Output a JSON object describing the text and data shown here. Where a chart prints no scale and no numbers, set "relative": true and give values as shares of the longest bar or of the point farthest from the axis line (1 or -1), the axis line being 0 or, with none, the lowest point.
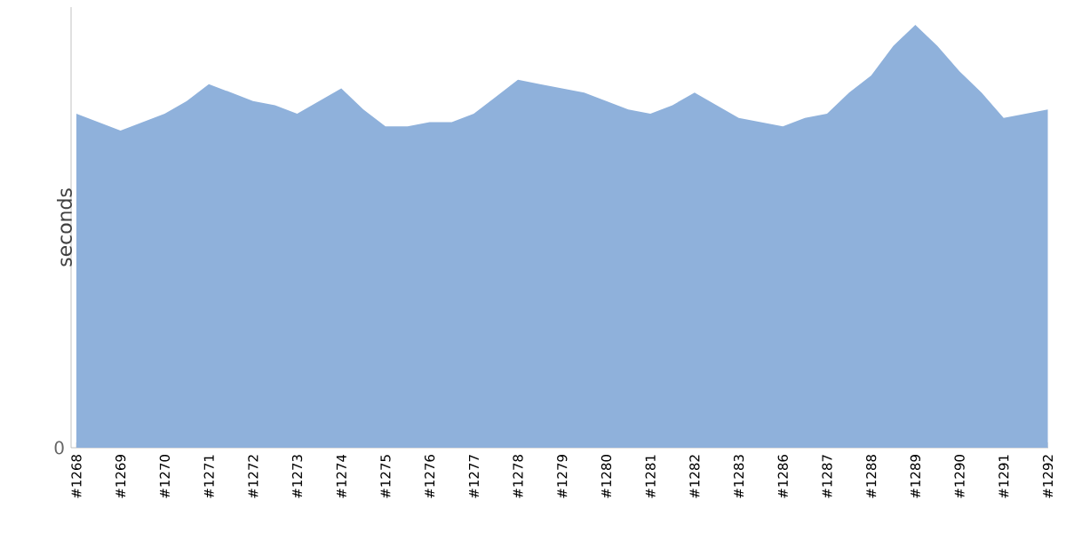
{
  "chart_data": {
    "type": "area",
    "ylabel": "seconds",
    "relative": true,
    "color": "#8fb1db",
    "annotations": [
      "0"
    ],
    "categories": [
      "#1268",
      null,
      "#1269",
      null,
      "#1270",
      null,
      "#1271",
      null,
      "#1272",
      null,
      "#1273",
      null,
      "#1274",
      null,
      "#1275",
      null,
      "#1276",
      null,
      "#1277",
      null,
      "#1278",
      null,
      "#1279",
      null,
      "#1280",
      null,
      "#1281",
      null,
      "#1282",
      null,
      "#1283",
      null,
      "#1286",
      null,
      "#1287",
      null,
      "#1288",
      null,
      "#1289",
      null,
      "#1290",
      null,
      "#1291",
      null,
      "#1292"
    ],
    "values": [
      0.79,
      0.77,
      0.75,
      0.77,
      0.79,
      0.82,
      0.86,
      0.84,
      0.82,
      0.81,
      0.79,
      0.82,
      0.85,
      0.8,
      0.76,
      0.76,
      0.77,
      0.77,
      0.79,
      0.83,
      0.87,
      0.86,
      0.85,
      0.84,
      0.82,
      0.8,
      0.79,
      0.81,
      0.84,
      0.81,
      0.78,
      0.77,
      0.76,
      0.78,
      0.79,
      0.84,
      0.88,
      0.95,
      1,
      0.95,
      0.89,
      0.84,
      0.78,
      0.79,
      0.8
    ]
  }
}
